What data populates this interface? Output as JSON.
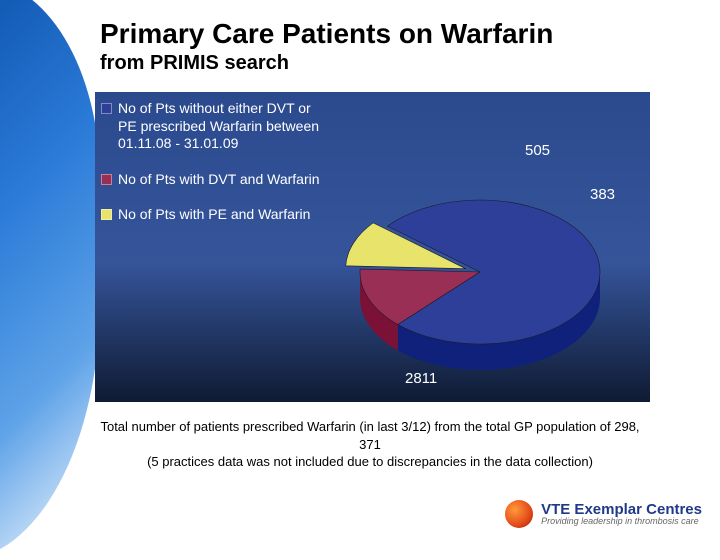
{
  "title": "Primary Care Patients on Warfarin",
  "subtitle": "from PRIMIS search",
  "chart": {
    "type": "pie",
    "background_gradient_top": "#2b4a8e",
    "background_gradient_mid": "#35549a",
    "background_gradient_bottom": "#0f1b33",
    "legend_text_color": "#ffffff",
    "legend_fontsize": 14,
    "value_label_color": "#ffffff",
    "value_label_fontsize": 15,
    "slices": [
      {
        "label": "No of Pts without either DVT or PE prescribed Warfarin between 01.11.08 - 31.01.09",
        "value": 2811,
        "color": "#2e3f99",
        "swatch_color": "#2e3f99"
      },
      {
        "label": "No of Pts with DVT and Warfarin",
        "value": 505,
        "color": "#9a2f55",
        "swatch_color": "#9a2f55"
      },
      {
        "label": "No of Pts with PE and Warfarin",
        "value": 383,
        "color": "#e8e36a",
        "swatch_color": "#e8e36a"
      }
    ],
    "slice_edge_color": "#1a1a2a",
    "explode_slice_index": 2,
    "explode_offset": 0.08,
    "tilt_3d": true
  },
  "footnote_line1": "Total number of patients prescribed Warfarin (in last 3/12) from the total GP population of 298, 371",
  "footnote_line2": "(5 practices data was not included due to discrepancies in the data collection)",
  "brand": {
    "title": "VTE Exemplar Centres",
    "tagline": "Providing leadership in thrombosis care",
    "title_color": "#203a8a"
  }
}
